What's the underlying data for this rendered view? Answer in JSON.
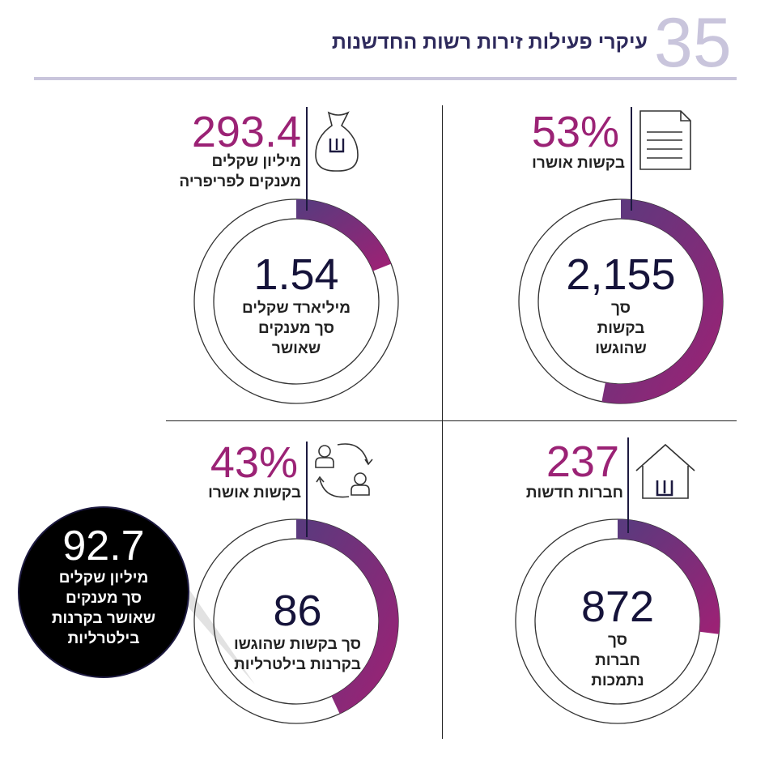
{
  "header": {
    "page_number": "35",
    "title": "עיקרי פעילות זירות רשות החדשנות"
  },
  "colors": {
    "accent": "#9b2275",
    "arc_start": "#5a3a7e",
    "dark": "#1d1a40",
    "rule": "#c9c5dc"
  },
  "panels": [
    {
      "id": "requests",
      "icon": "document-icon",
      "stat": "53%",
      "stat_label": "בקשות אושרו",
      "center_value": "2,155",
      "center_lines": [
        "סך",
        "בקשות",
        "שהוגשו"
      ]
    },
    {
      "id": "grants",
      "icon": "money-bag-shekel-icon",
      "stat": "293.4",
      "stat_label_lines": [
        "מיליון שקלים",
        "מענקים לפריפריה"
      ],
      "center_value": "1.54",
      "center_lines": [
        "מיליארד שקלים",
        "סך מענקים",
        "שאושר"
      ]
    },
    {
      "id": "companies",
      "icon": "house-shekel-icon",
      "stat": "237",
      "stat_label": "חברות חדשות",
      "center_value": "872",
      "center_lines": [
        "סך",
        "חברות",
        "נתמכות"
      ]
    },
    {
      "id": "binational",
      "icon": "people-exchange-icon",
      "stat": "43%",
      "stat_label": "בקשות אושרו",
      "center_value": "86",
      "center_lines": [
        "סך בקשות שהוגשו",
        "בקרנות בילטרליות"
      ]
    }
  ],
  "callout": {
    "value": "92.7",
    "lines": [
      "מיליון שקלים",
      "סך מענקים",
      "שאושר בקרנות",
      "בילטרליות"
    ]
  },
  "chart_data": {
    "type": "donut-gauges",
    "series": [
      {
        "name": "בקשות אושרו",
        "fraction": 0.53
      },
      {
        "name": "מענקים לפריפריה",
        "fraction": 0.19
      },
      {
        "name": "חברות חדשות",
        "fraction": 0.27
      },
      {
        "name": "בקשות אושרו בקרנות בילטרליות",
        "fraction": 0.43
      }
    ]
  }
}
